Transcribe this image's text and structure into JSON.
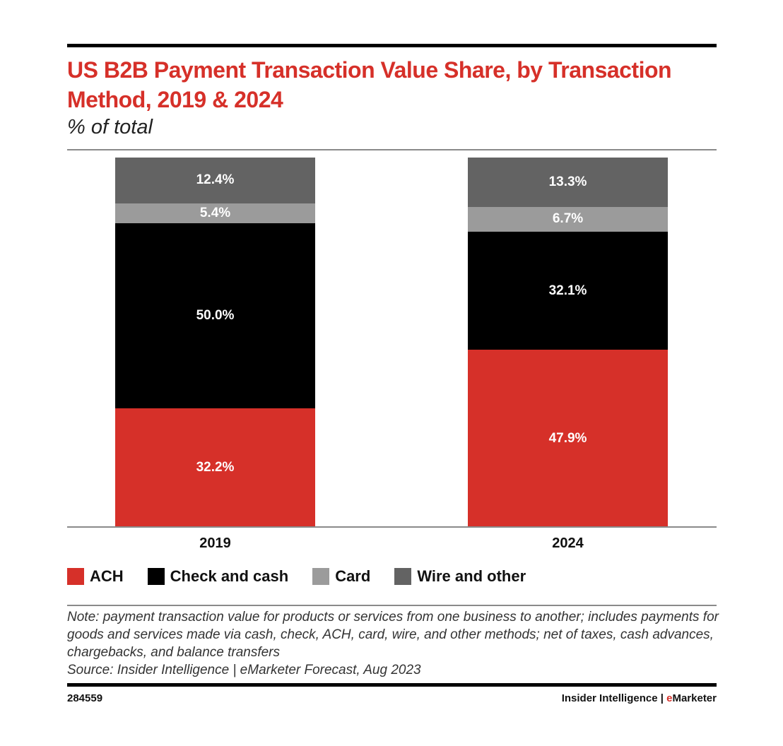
{
  "header": {
    "title": "US B2B Payment Transaction Value Share, by Transaction Method, 2019 & 2024",
    "subtitle": "% of total"
  },
  "legend": [
    {
      "label": "ACH",
      "color": "#d63029"
    },
    {
      "label": "Check and cash",
      "color": "#000000"
    },
    {
      "label": "Card",
      "color": "#9b9b9b"
    },
    {
      "label": "Wire and other",
      "color": "#636363"
    }
  ],
  "bars": [
    {
      "year": "2019",
      "labels": [
        "32.2%",
        "50.0%",
        "5.4%",
        "12.4%"
      ]
    },
    {
      "year": "2024",
      "labels": [
        "47.9%",
        "32.1%",
        "6.7%",
        "13.3%"
      ]
    }
  ],
  "footer": {
    "note": "Note: payment transaction value for products or services from one business to another; includes payments for goods and services made via cash, check, ACH, card, wire, and other methods; net of taxes, cash advances, chargebacks, and balance transfers",
    "source": "Source: Insider Intelligence | eMarketer Forecast, Aug 2023",
    "chart_id": "284559",
    "brand_prefix": "Insider Intelligence | ",
    "brand_e": "e",
    "brand_suffix": "Marketer"
  },
  "chart_data": {
    "type": "bar",
    "stacked": true,
    "title": "US B2B Payment Transaction Value Share, by Transaction Method, 2019 & 2024",
    "subtitle": "% of total",
    "xlabel": "",
    "ylabel": "% of total",
    "categories": [
      "2019",
      "2024"
    ],
    "series": [
      {
        "name": "ACH",
        "color": "#d63029",
        "values": [
          32.2,
          47.9
        ]
      },
      {
        "name": "Check and cash",
        "color": "#000000",
        "values": [
          50.0,
          32.1
        ]
      },
      {
        "name": "Card",
        "color": "#9b9b9b",
        "values": [
          5.4,
          6.7
        ]
      },
      {
        "name": "Wire and other",
        "color": "#636363",
        "values": [
          12.4,
          13.3
        ]
      }
    ],
    "ylim": [
      0,
      100
    ],
    "grid": false,
    "legend_position": "bottom",
    "note": "Note: payment transaction value for products or services from one business to another; includes payments for goods and services made via cash, check, ACH, card, wire, and other methods; net of taxes, cash advances, chargebacks, and balance transfers",
    "source": "Source: Insider Intelligence | eMarketer Forecast, Aug 2023"
  }
}
